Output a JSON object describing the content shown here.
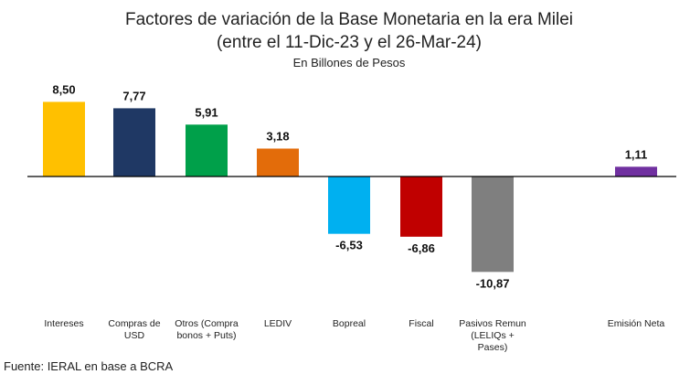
{
  "chart_data": {
    "type": "bar",
    "title": "Factores de variación de la Base Monetaria en la era Milei",
    "subtitle": "(entre el 11-Dic-23 y el 26-Mar-24)",
    "unit": "En Billones de Pesos",
    "source": "Fuente: IERAL en base a BCRA",
    "categories": [
      [
        "Intereses"
      ],
      [
        "Compras de",
        "USD"
      ],
      [
        "Otros (Compra",
        "bonos + Puts)"
      ],
      [
        "LEDIV"
      ],
      [
        "Bopreal"
      ],
      [
        "Fiscal"
      ],
      [
        "Pasivos Remun",
        "(LELIQs +",
        "Pases)"
      ],
      [
        "Emisión Neta"
      ]
    ],
    "values": [
      8.5,
      7.77,
      5.91,
      3.18,
      -6.53,
      -6.86,
      -10.87,
      1.11
    ],
    "value_labels": [
      "8,50",
      "7,77",
      "5,91",
      "3,18",
      "-6,53",
      "-6,86",
      "-10,87",
      "1,11"
    ],
    "colors": [
      "#ffc000",
      "#1f3864",
      "#00a04a",
      "#e36c0a",
      "#00b0f0",
      "#c00000",
      "#7f7f7f",
      "#7030a0"
    ],
    "grid": false,
    "legend": "none"
  }
}
